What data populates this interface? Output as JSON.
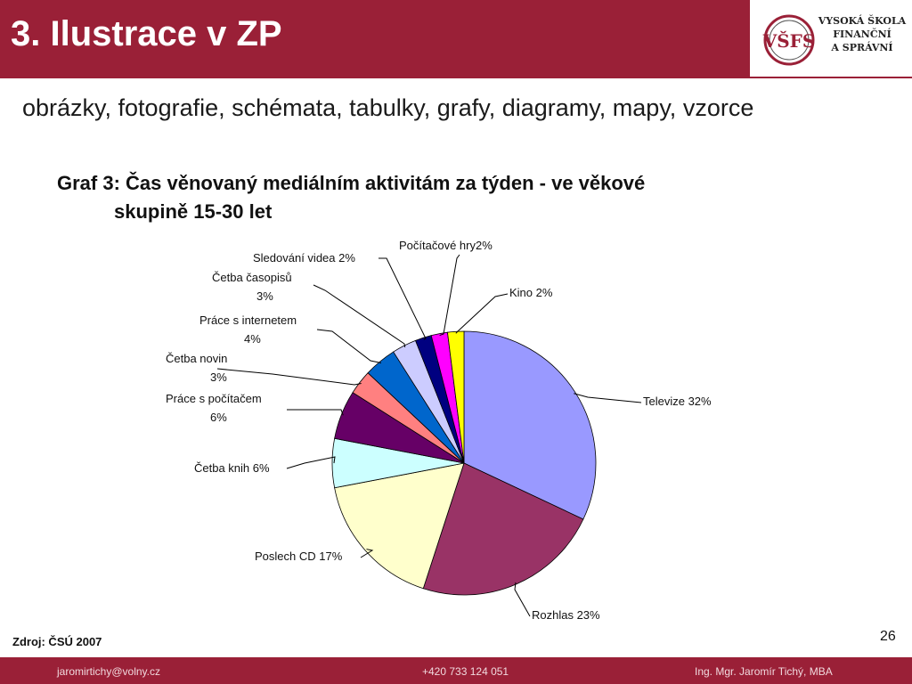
{
  "header": {
    "title": "3. Ilustrace v ZP"
  },
  "logo": {
    "line1": "VYSOKÁ ŠKOLA",
    "line2": "FINANČNÍ",
    "line3": "A SPRÁVNÍ",
    "monogram": "VŠFS"
  },
  "subtitle": "obrázky, fotografie, schémata, tabulky, grafy, diagramy, mapy, vzorce",
  "chart_heading": {
    "line1": "Graf 3: Čas věnovaný mediálním aktivitám za týden - ve věkové",
    "line2": "skupině 15-30 let"
  },
  "chart_data": {
    "type": "pie",
    "title": "Graf 3: Čas věnovaný mediálním aktivitám za týden - ve věkové skupině 15-30 let",
    "slices": [
      {
        "label": "Televize",
        "value": 32,
        "color": "#9999ff",
        "text": [
          "Televize 32%"
        ]
      },
      {
        "label": "Rozhlas",
        "value": 23,
        "color": "#993366",
        "text": [
          "Rozhlas  23%"
        ]
      },
      {
        "label": "Poslech CD",
        "value": 17,
        "color": "#ffffcc",
        "text": [
          "Poslech CD 17%"
        ]
      },
      {
        "label": "Četba knih",
        "value": 6,
        "color": "#ccffff",
        "text": [
          "Četba knih  6%"
        ]
      },
      {
        "label": "Práce s počítačem",
        "value": 6,
        "color": "#660066",
        "text": [
          "Práce s počítačem",
          "6%"
        ]
      },
      {
        "label": "Četba novin",
        "value": 3,
        "color": "#ff8080",
        "text": [
          "Četba novin",
          "3%"
        ]
      },
      {
        "label": "Práce s internetem",
        "value": 4,
        "color": "#0066cc",
        "text": [
          "Práce s internetem",
          "4%"
        ]
      },
      {
        "label": "Četba časopisů",
        "value": 3,
        "color": "#ccccff",
        "text": [
          "Četba časopisů",
          "3%"
        ]
      },
      {
        "label": "Sledování videa",
        "value": 2,
        "color": "#000080",
        "text": [
          "Sledování videa 2%"
        ]
      },
      {
        "label": "Počítačové hry",
        "value": 2,
        "color": "#ff00ff",
        "text": [
          "Počítačové hry2%"
        ]
      },
      {
        "label": "Kino",
        "value": 2,
        "color": "#ffff00",
        "text": [
          "Kino 2%"
        ]
      }
    ]
  },
  "source": "Zdroj: ČSÚ 2007",
  "page_number": "26",
  "footer": {
    "email": "jaromirtichy@volny.cz",
    "phone": "+420 733 124 051",
    "author": "Ing. Mgr. Jaromír Tichý, MBA"
  },
  "colors": {
    "brand": "#9a2037"
  }
}
